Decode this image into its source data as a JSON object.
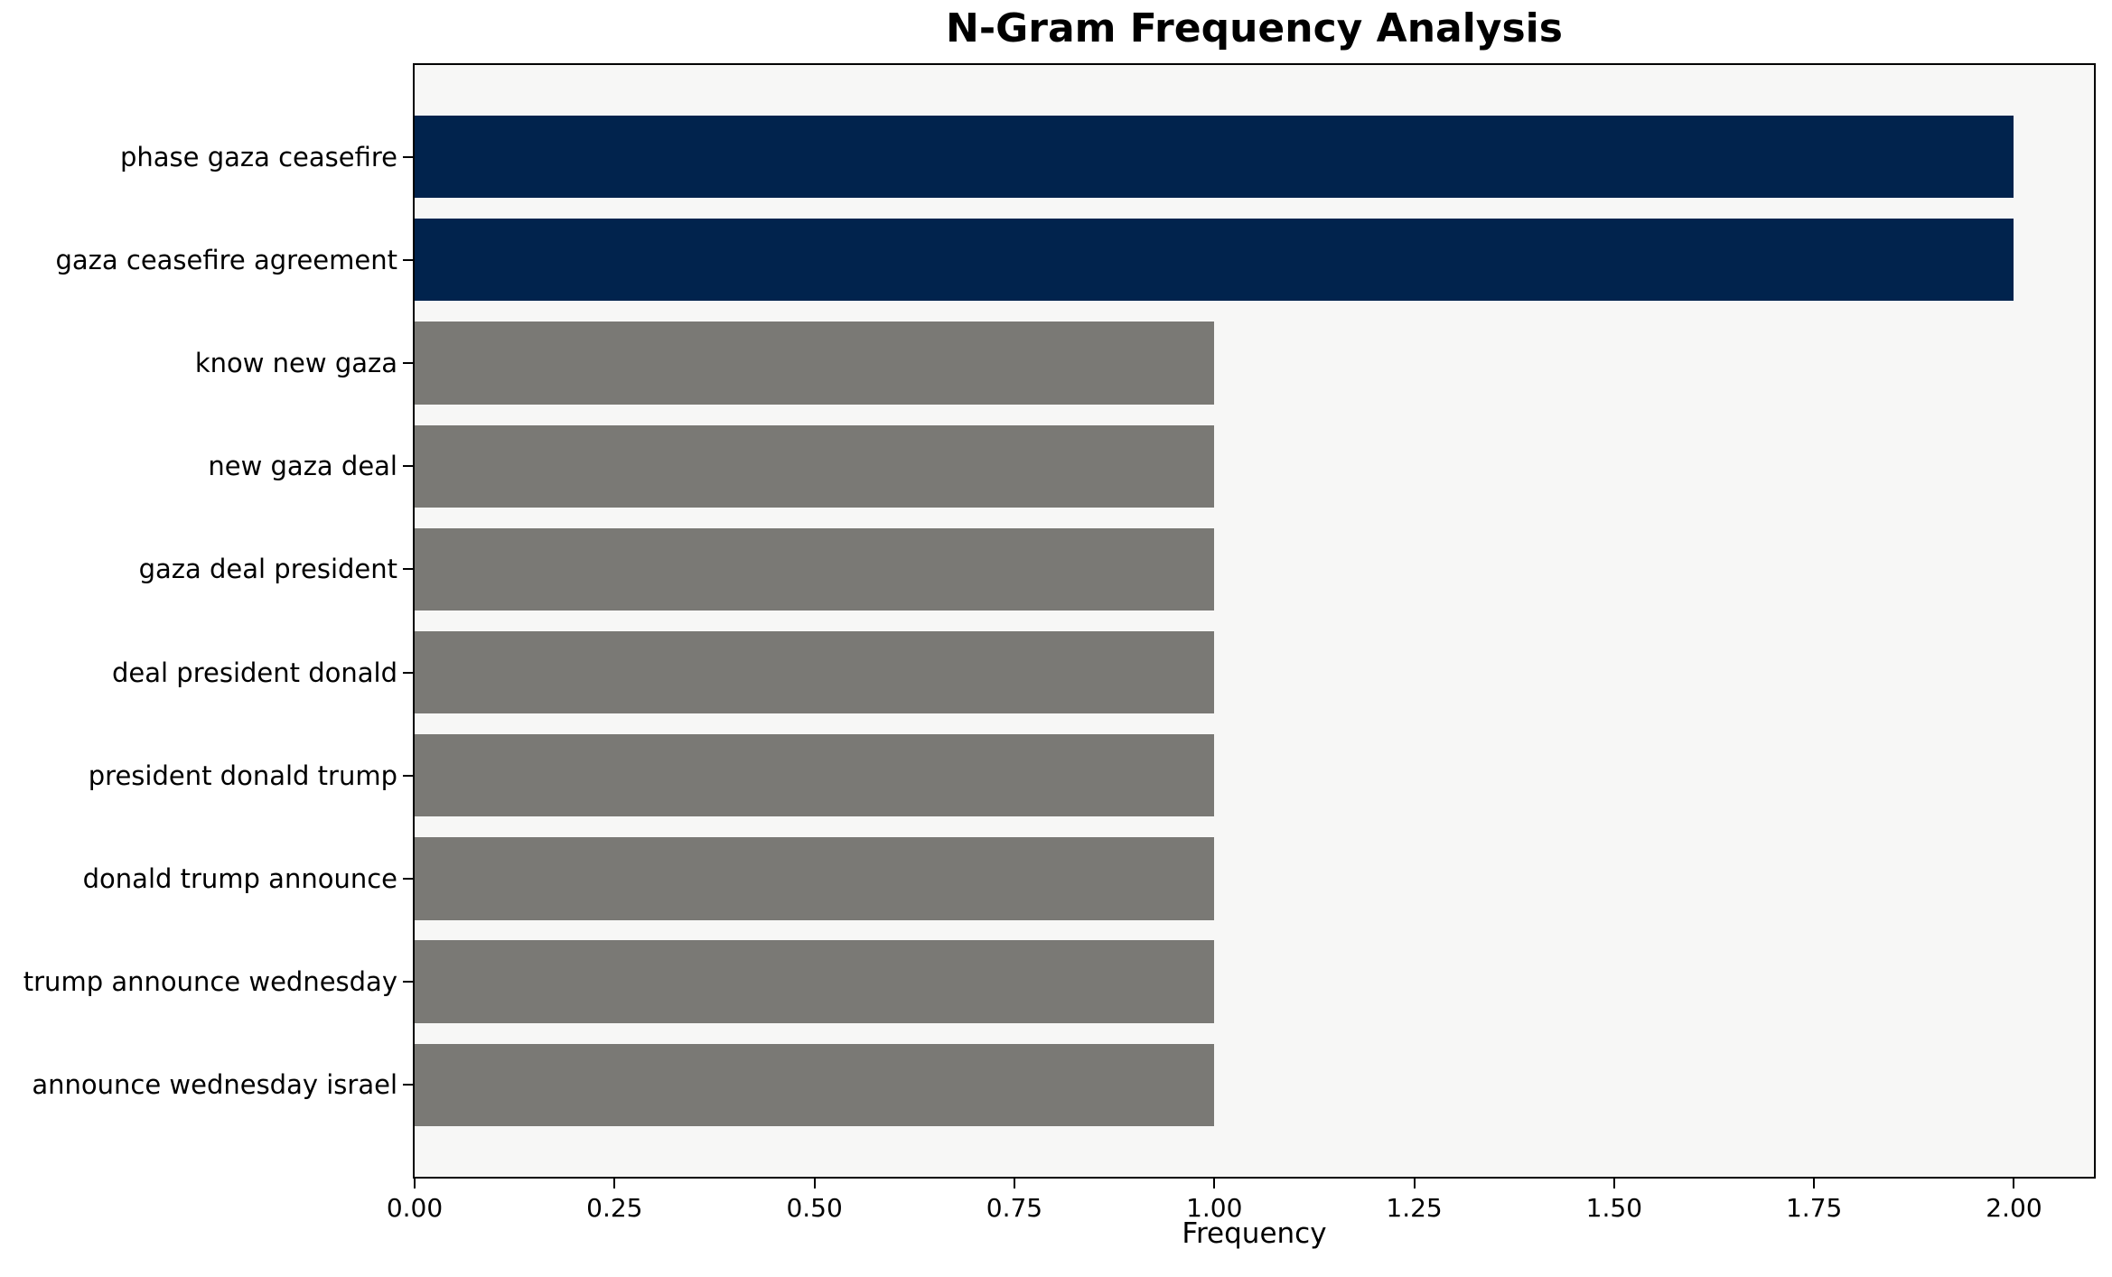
{
  "chart_data": {
    "type": "bar",
    "orientation": "horizontal",
    "title": "N-Gram Frequency Analysis",
    "xlabel": "Frequency",
    "ylabel": "",
    "categories": [
      "phase gaza ceasefire",
      "gaza ceasefire agreement",
      "know new gaza",
      "new gaza deal",
      "gaza deal president",
      "deal president donald",
      "president donald trump",
      "donald trump announce",
      "trump announce wednesday",
      "announce wednesday israel"
    ],
    "values": [
      2,
      2,
      1,
      1,
      1,
      1,
      1,
      1,
      1,
      1
    ],
    "bar_colors": [
      "#01234d",
      "#01234d",
      "#7a7975",
      "#7a7975",
      "#7a7975",
      "#7a7975",
      "#7a7975",
      "#7a7975",
      "#7a7975",
      "#7a7975"
    ],
    "highlight_color": "#01234d",
    "default_color": "#7a7975",
    "xlim": [
      0,
      2.1
    ],
    "xticks": [
      0,
      0.25,
      0.5,
      0.75,
      1.0,
      1.25,
      1.5,
      1.75,
      2.0
    ],
    "xtick_labels": [
      "0.00",
      "0.25",
      "0.50",
      "0.75",
      "1.00",
      "1.25",
      "1.50",
      "1.75",
      "2.00"
    ],
    "grid": false,
    "legend": null,
    "plot_background": "#f7f7f6",
    "frame": "full-box-black"
  }
}
